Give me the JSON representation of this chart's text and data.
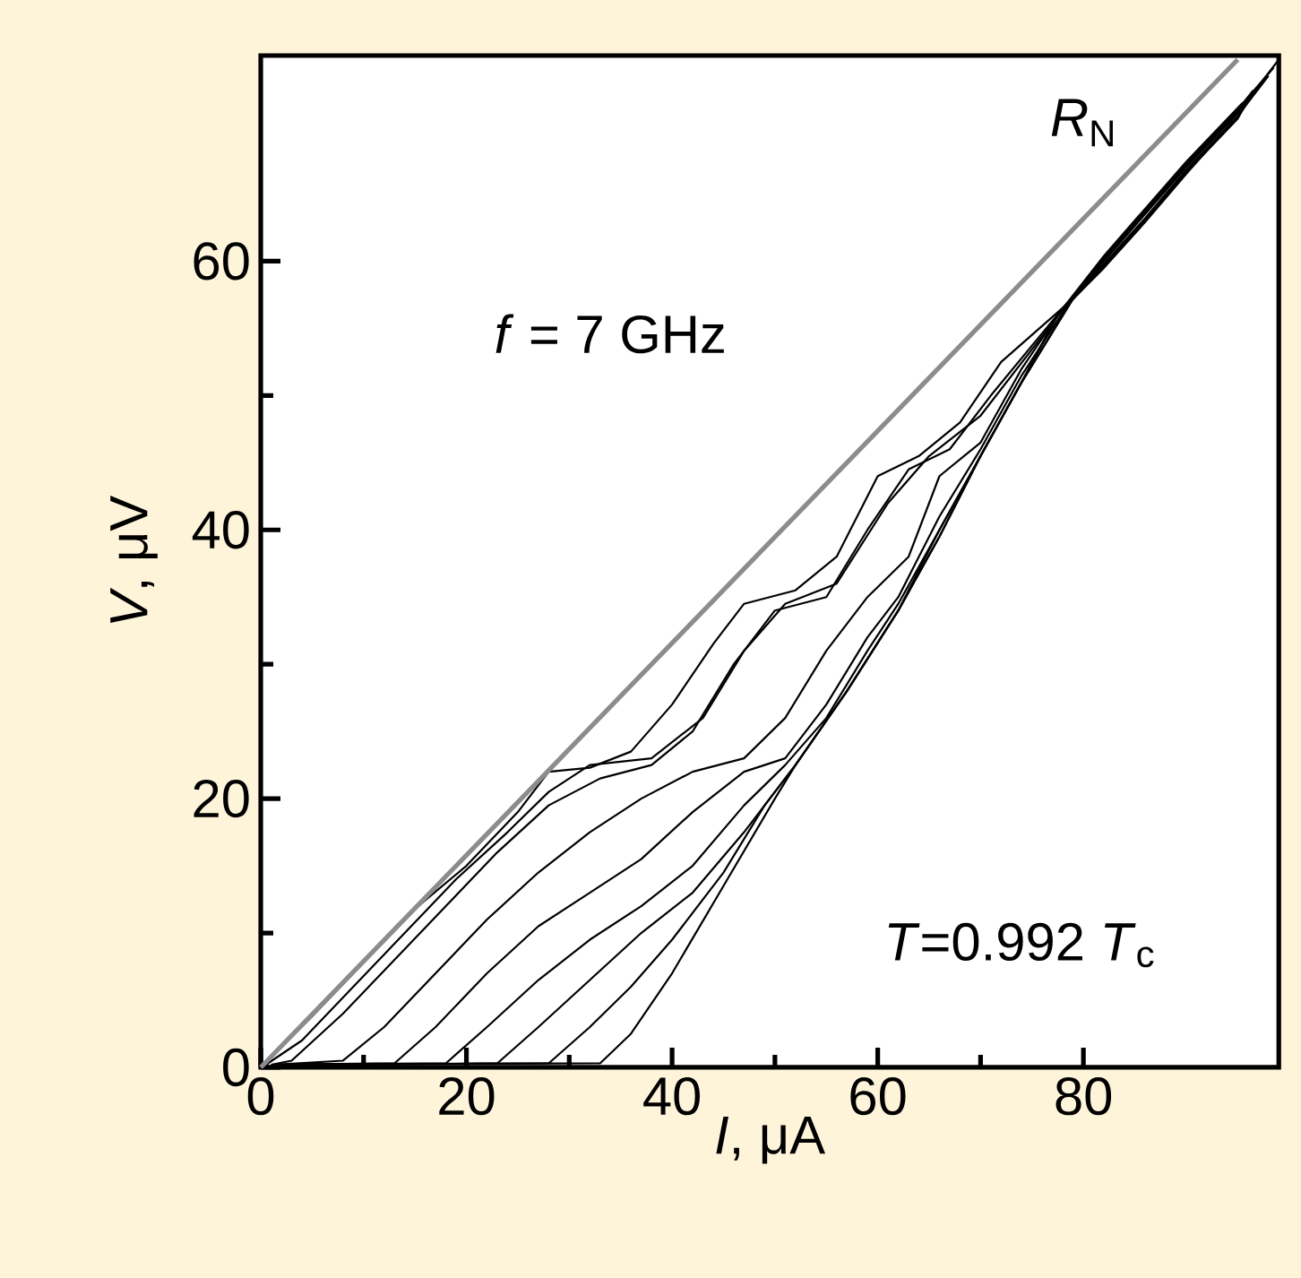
{
  "chart_data": {
    "type": "line",
    "xlabel": "*I*, μA",
    "ylabel": "*V*, μV",
    "xlim": [
      0,
      99
    ],
    "ylim": [
      0,
      75.3
    ],
    "xticks": [
      0,
      20,
      40,
      60,
      80
    ],
    "yticks": [
      0,
      20,
      40,
      60
    ],
    "annotations": [
      "*R*$_{N}$",
      "*f* = 7 GHz",
      "*T*=0.992 *T*$_{c}$"
    ],
    "series": [
      {
        "color": "#000000",
        "x": [
          0,
          5,
          10,
          15,
          20,
          25,
          28,
          32,
          36,
          40,
          44,
          47,
          52,
          56,
          60,
          64,
          68,
          72,
          78.4,
          82,
          86,
          90,
          95,
          99
        ],
        "values": [
          0,
          3.8,
          7.8,
          11.8,
          15,
          19,
          22,
          22.3,
          23.5,
          27,
          31.5,
          34.5,
          35.5,
          38,
          44,
          45.5,
          48,
          52.5,
          56.8,
          60,
          63.5,
          67,
          71,
          75
        ]
      },
      {
        "color": "#000000",
        "x": [
          0.5,
          4,
          9,
          14,
          19,
          24,
          28,
          32,
          38,
          43,
          47,
          51,
          56,
          61,
          65,
          70,
          78.2,
          82,
          86,
          90,
          95,
          98.5
        ],
        "values": [
          0.2,
          2,
          6,
          10,
          14,
          17.5,
          20.5,
          22.5,
          23,
          26,
          31,
          34.5,
          36,
          42,
          45.5,
          48.5,
          56.6,
          60.3,
          63.8,
          67.3,
          71.3,
          74.4
        ]
      },
      {
        "color": "#000000",
        "x": [
          1,
          3,
          8,
          13,
          18,
          23,
          28,
          33,
          38,
          42,
          46,
          50,
          55,
          59,
          63,
          67,
          71,
          78,
          82,
          86,
          90,
          95,
          98
        ],
        "values": [
          0.2,
          0.5,
          4,
          8,
          12,
          16,
          19.5,
          21.5,
          22.5,
          25,
          30,
          34,
          35,
          40,
          44.5,
          46,
          50,
          56.5,
          59.8,
          63.2,
          66.8,
          70.8,
          73.8
        ]
      },
      {
        "color": "#000000",
        "x": [
          1.5,
          8,
          12,
          17,
          22,
          27,
          32,
          37,
          42,
          47,
          51,
          55,
          59,
          63,
          66,
          70,
          74,
          77.8,
          82,
          86,
          90,
          95,
          97.5
        ],
        "values": [
          0.2,
          0.5,
          3,
          7,
          11,
          14.5,
          17.5,
          20,
          22,
          23,
          26,
          31,
          35,
          38,
          44,
          46.5,
          52,
          56.3,
          60.1,
          63.6,
          67.1,
          71.1,
          73.4
        ]
      },
      {
        "color": "#000000",
        "x": [
          2,
          13,
          17,
          22,
          27,
          32,
          37,
          42,
          47,
          51,
          55,
          59,
          62,
          66,
          70,
          74,
          78.6,
          82,
          86,
          90,
          95,
          97
        ],
        "values": [
          0.2,
          0.3,
          3,
          7,
          10.5,
          13,
          15.5,
          19,
          22,
          23,
          27,
          32,
          35,
          41,
          46,
          51.5,
          56.9,
          59.7,
          63.1,
          66.7,
          70.7,
          73
        ]
      },
      {
        "color": "#000000",
        "x": [
          2.5,
          18,
          22,
          27,
          32,
          37,
          42,
          47,
          51,
          55,
          59,
          62,
          66,
          70,
          74,
          77.6,
          82,
          86,
          90,
          95,
          96.5
        ],
        "values": [
          0.2,
          0.3,
          3,
          6.5,
          9.5,
          12,
          15,
          19.5,
          22.5,
          26,
          31,
          34.5,
          40,
          45.5,
          51,
          56.1,
          60.2,
          63.7,
          67.2,
          71.2,
          72.7
        ]
      },
      {
        "color": "#000000",
        "x": [
          3,
          23,
          27,
          32,
          37,
          42,
          47,
          52,
          57,
          62,
          66,
          70,
          74,
          78.8,
          82,
          86,
          90,
          95,
          96
        ],
        "values": [
          0.2,
          0.3,
          3,
          6.5,
          10,
          13,
          17.5,
          22.5,
          28,
          34,
          40,
          45.5,
          51,
          57,
          59.6,
          63,
          66.6,
          70.6,
          72
        ]
      },
      {
        "color": "#000000",
        "x": [
          3.5,
          28,
          32,
          36,
          40,
          45,
          49,
          52,
          57,
          62,
          66,
          70,
          74,
          77.4,
          82,
          86,
          90,
          95,
          95.5
        ],
        "values": [
          0.2,
          0.3,
          3,
          6,
          9.5,
          14.5,
          19.5,
          22.5,
          28,
          34,
          39.5,
          45.5,
          51,
          55.9,
          60.4,
          63.9,
          67.4,
          71.4,
          71.8
        ]
      },
      {
        "color": "#000000",
        "x": [
          4,
          33,
          36,
          40,
          45,
          50,
          52,
          57,
          62,
          66,
          70,
          74,
          79,
          82,
          86,
          90,
          94.5
        ],
        "values": [
          0.2,
          0.3,
          2.5,
          7,
          13.5,
          20,
          22.5,
          28,
          34,
          39.5,
          45.5,
          51,
          57.2,
          59.5,
          62.9,
          66.5,
          70.4
        ]
      },
      {
        "color": "#8c8c8c",
        "x": [
          0,
          95
        ],
        "values": [
          0,
          75
        ]
      }
    ]
  }
}
